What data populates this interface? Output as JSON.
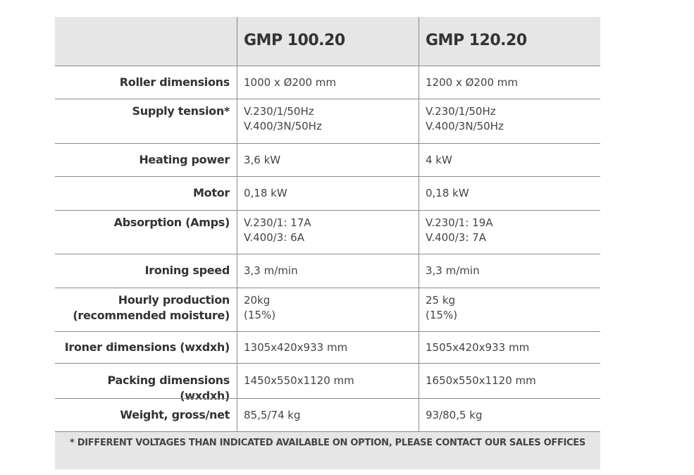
{
  "table": {
    "header": [
      "GMP 100.20",
      "GMP 120.20"
    ],
    "rows": [
      {
        "label": [
          "Roller dimensions"
        ],
        "cells": [
          [
            "1000 x Ø200 mm"
          ],
          [
            "1200 x Ø200 mm"
          ]
        ]
      },
      {
        "label": [
          "Supply tension*"
        ],
        "cells": [
          [
            "V.230/1/50Hz",
            "V.400/3N/50Hz"
          ],
          [
            "V.230/1/50Hz",
            "V.400/3N/50Hz"
          ]
        ]
      },
      {
        "label": [
          "Heating power"
        ],
        "cells": [
          [
            "3,6 kW"
          ],
          [
            "4 kW"
          ]
        ]
      },
      {
        "label": [
          "Motor"
        ],
        "cells": [
          [
            "0,18 kW"
          ],
          [
            "0,18 kW"
          ]
        ]
      },
      {
        "label": [
          "Absorption (Amps)"
        ],
        "cells": [
          [
            "V.230/1: 17A",
            "V.400/3: 6A"
          ],
          [
            "V.230/1: 19A",
            "V.400/3: 7A"
          ]
        ]
      },
      {
        "label": [
          "Ironing speed"
        ],
        "cells": [
          [
            "3,3 m/min"
          ],
          [
            "3,3 m/min"
          ]
        ]
      },
      {
        "label": [
          "Hourly production",
          "(recommended moisture)"
        ],
        "cells": [
          [
            "20kg",
            "(15%)"
          ],
          [
            "25 kg",
            "(15%)"
          ]
        ]
      },
      {
        "label": [
          "Ironer dimensions (wxdxh)"
        ],
        "cells": [
          [
            "1305x420x933 mm"
          ],
          [
            "1505x420x933 mm"
          ]
        ]
      },
      {
        "label": [
          "Packing dimensions (wxdxh)"
        ],
        "cells": [
          [
            "1450x550x1120 mm"
          ],
          [
            "1650x550x1120 mm"
          ]
        ]
      },
      {
        "label": [
          "Weight, gross/net"
        ],
        "cells": [
          [
            "85,5/74 kg"
          ],
          [
            "93/80,5 kg"
          ]
        ]
      }
    ],
    "footnote": "* DIFFERENT VOLTAGES THAN INDICATED AVAILABLE ON OPTION, PLEASE CONTACT OUR SALES OFFICES"
  }
}
